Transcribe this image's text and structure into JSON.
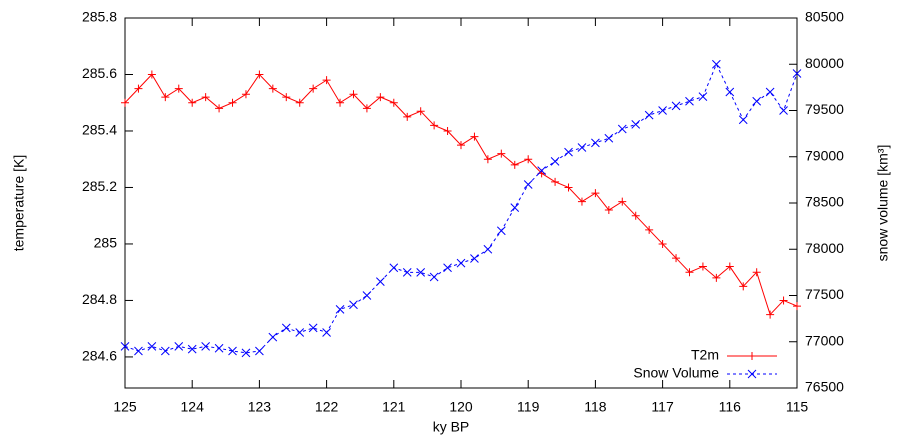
{
  "chart_data": {
    "type": "line",
    "xlabel": "ky BP",
    "ylabel": "temperature [K]",
    "y2label": "snow volume [km³]",
    "x": [
      125,
      124.8,
      124.6,
      124.4,
      124.2,
      124,
      123.8,
      123.6,
      123.4,
      123.2,
      123,
      122.8,
      122.6,
      122.4,
      122.2,
      122,
      121.8,
      121.6,
      121.4,
      121.2,
      121,
      120.8,
      120.6,
      120.4,
      120.2,
      120,
      119.8,
      119.6,
      119.4,
      119.2,
      119,
      118.8,
      118.6,
      118.4,
      118.2,
      118,
      117.8,
      117.6,
      117.4,
      117.2,
      117,
      116.8,
      116.6,
      116.4,
      116.2,
      116,
      115.8,
      115.6,
      115.4,
      115.2,
      115
    ],
    "series": [
      {
        "name": "T2m",
        "color": "#ff0000",
        "marker": "plus",
        "dashed": false,
        "axis": "y",
        "values": [
          285.5,
          285.55,
          285.6,
          285.52,
          285.55,
          285.5,
          285.52,
          285.48,
          285.5,
          285.53,
          285.6,
          285.55,
          285.52,
          285.5,
          285.55,
          285.58,
          285.5,
          285.53,
          285.48,
          285.52,
          285.5,
          285.45,
          285.47,
          285.42,
          285.4,
          285.35,
          285.38,
          285.3,
          285.32,
          285.28,
          285.3,
          285.25,
          285.22,
          285.2,
          285.15,
          285.18,
          285.12,
          285.15,
          285.1,
          285.05,
          285.0,
          284.95,
          284.9,
          284.92,
          284.88,
          284.92,
          284.85,
          284.9,
          284.75,
          284.8,
          284.78
        ]
      },
      {
        "name": "Snow Volume",
        "color": "#0000ff",
        "marker": "cross",
        "dashed": true,
        "axis": "y2",
        "values": [
          76950,
          76900,
          76950,
          76900,
          76950,
          76920,
          76950,
          76930,
          76900,
          76880,
          76900,
          77050,
          77150,
          77100,
          77150,
          77100,
          77350,
          77400,
          77500,
          77650,
          77800,
          77750,
          77750,
          77700,
          77800,
          77850,
          77900,
          78000,
          78200,
          78450,
          78700,
          78850,
          78950,
          79050,
          79100,
          79150,
          79200,
          79300,
          79350,
          79450,
          79500,
          79550,
          79600,
          79650,
          80000,
          79700,
          79400,
          79600,
          79700,
          79500,
          79900
        ]
      }
    ],
    "xlim": [
      125,
      115
    ],
    "xticks": [
      125,
      124,
      123,
      122,
      121,
      120,
      119,
      118,
      117,
      116,
      115
    ],
    "ylim": [
      284.49,
      285.8
    ],
    "yticks": [
      284.6,
      284.8,
      285,
      285.2,
      285.4,
      285.6,
      285.8
    ],
    "y2lim": [
      76500,
      80500
    ],
    "y2ticks": [
      76500,
      77000,
      77500,
      78000,
      78500,
      79000,
      79500,
      80000,
      80500
    ],
    "legend": "bottom-right"
  }
}
